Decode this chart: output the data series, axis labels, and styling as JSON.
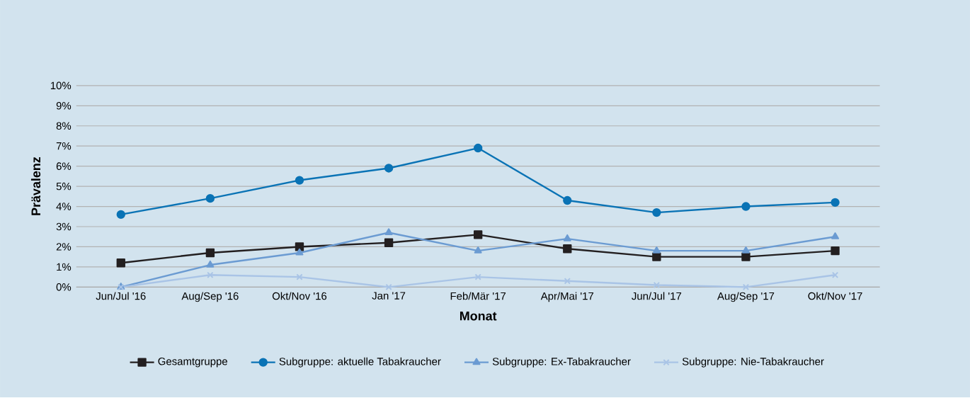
{
  "chart_data": {
    "type": "line",
    "xlabel": "Monat",
    "ylabel": "Prävalenz",
    "categories": [
      "Jun/Jul '16",
      "Aug/Sep '16",
      "Okt/Nov '16",
      "Jan '17",
      "Feb/Mär '17",
      "Apr/Mai '17",
      "Jun/Jul '17",
      "Aug/Sep '17",
      "Okt/Nov '17"
    ],
    "series": [
      {
        "name": "Gesamtgruppe",
        "color": "#231f20",
        "marker": "square",
        "values": [
          1.2,
          1.7,
          2.0,
          2.2,
          2.6,
          1.9,
          1.5,
          1.5,
          1.8
        ]
      },
      {
        "name": "Subgruppe: aktuelle Tabakraucher",
        "color": "#0a73b5",
        "marker": "circle",
        "values": [
          3.6,
          4.4,
          5.3,
          5.9,
          6.9,
          4.3,
          3.7,
          4.0,
          4.2
        ]
      },
      {
        "name": "Subgruppe: Ex-Tabakraucher",
        "color": "#6b9bd2",
        "marker": "triangle",
        "values": [
          0.0,
          1.1,
          1.7,
          2.7,
          1.8,
          2.4,
          1.8,
          1.8,
          2.5
        ]
      },
      {
        "name": "Subgruppe: Nie-Tabakraucher",
        "color": "#a9c4e6",
        "marker": "cross",
        "values": [
          0.0,
          0.6,
          0.5,
          0.0,
          0.5,
          0.3,
          0.1,
          0.0,
          0.6
        ]
      }
    ],
    "ylim": [
      0,
      10
    ],
    "yticks": [
      {
        "value": 0,
        "label": "0%"
      },
      {
        "value": 1,
        "label": "1%"
      },
      {
        "value": 2,
        "label": "2%"
      },
      {
        "value": 3,
        "label": "3%"
      },
      {
        "value": 4,
        "label": "4%"
      },
      {
        "value": 5,
        "label": "5%"
      },
      {
        "value": 6,
        "label": "6%"
      },
      {
        "value": 7,
        "label": "7%"
      },
      {
        "value": 8,
        "label": "8%"
      },
      {
        "value": 9,
        "label": "9%"
      },
      {
        "value": 10,
        "label": "10%"
      }
    ],
    "grid": "y",
    "legend": "bottom",
    "line_style": "solid"
  }
}
